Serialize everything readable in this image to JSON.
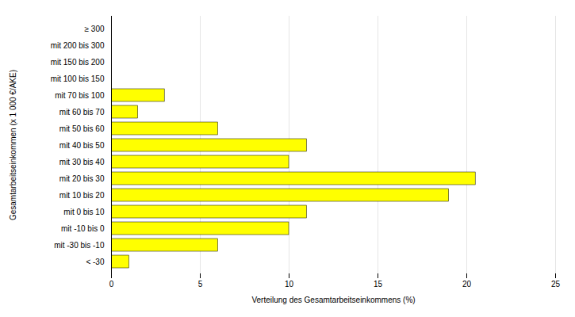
{
  "chart_data": {
    "type": "bar",
    "orientation": "horizontal",
    "categories": [
      "≥ 300",
      "mit 200 bis 300",
      "mit 150 bis 200",
      "mit 100 bis 150",
      "mit 70 bis 100",
      "mit 60 bis 70",
      "mit 50 bis 60",
      "mit 40 bis 50",
      "mit 30 bis 40",
      "mit 20 bis 30",
      "mit 10 bis 20",
      "mit 0 bis 10",
      "mit -10 bis 0",
      "mit -30 bis -10",
      "< -30"
    ],
    "values": [
      0,
      0,
      0,
      0,
      3,
      1.5,
      6,
      11,
      10,
      20.5,
      19,
      11,
      10,
      6,
      1
    ],
    "color": "#FFFF00",
    "xlabel": "Verteilung des Gesamtarbeitseinkommens (%)",
    "ylabel": "Gesamtarbeitseinkommen (x 1 000 €/AKE)",
    "xlim": [
      0,
      25
    ],
    "xticks": [
      0,
      5,
      10,
      15,
      20,
      25
    ],
    "grid": true
  }
}
